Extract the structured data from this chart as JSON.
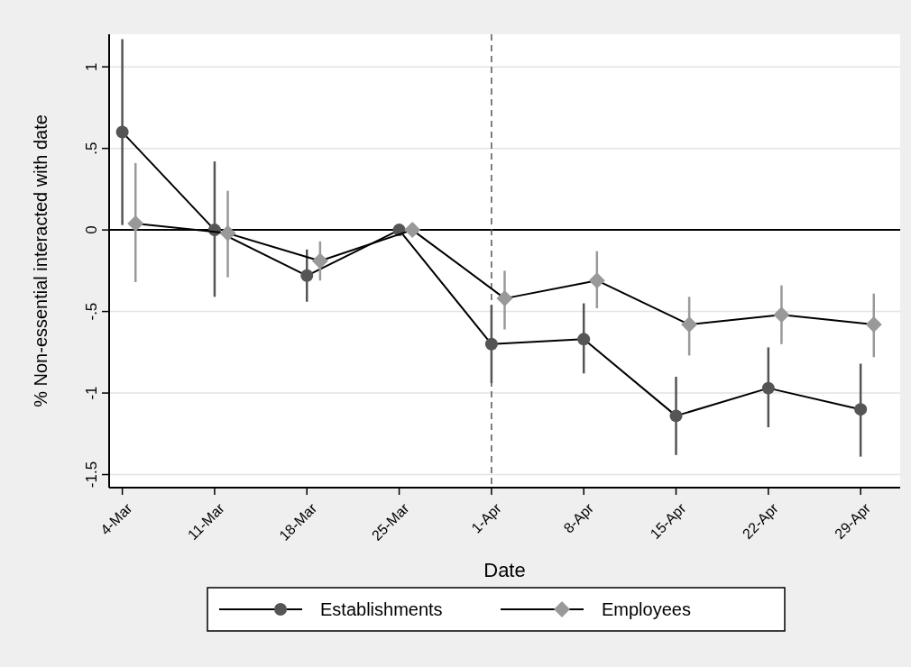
{
  "chart_data": {
    "type": "line",
    "xlabel": "Date",
    "ylabel": "% Non-essential interacted with date",
    "xlim": [
      "--03-03",
      "--05-02"
    ],
    "ylim": [
      -1.58,
      1.2
    ],
    "xticks": [
      {
        "value": "--03-04",
        "label": "4-Mar"
      },
      {
        "value": "--03-11",
        "label": "11-Mar"
      },
      {
        "value": "--03-18",
        "label": "18-Mar"
      },
      {
        "value": "--03-25",
        "label": "25-Mar"
      },
      {
        "value": "--04-01",
        "label": "1-Apr"
      },
      {
        "value": "--04-08",
        "label": "8-Apr"
      },
      {
        "value": "--04-15",
        "label": "15-Apr"
      },
      {
        "value": "--04-22",
        "label": "22-Apr"
      },
      {
        "value": "--04-29",
        "label": "29-Apr"
      }
    ],
    "yticks": [
      {
        "value": 1,
        "label": "1"
      },
      {
        "value": 0.5,
        "label": ".5"
      },
      {
        "value": 0,
        "label": "0"
      },
      {
        "value": -0.5,
        "label": "-.5"
      },
      {
        "value": -1,
        "label": "-1"
      },
      {
        "value": -1.5,
        "label": "-1.5"
      }
    ],
    "grid": "y",
    "legend": "bottom",
    "line_style": "solid",
    "ref_lines": [
      {
        "axis": "y",
        "value": 0,
        "color": "#000000",
        "line_style": "solid"
      },
      {
        "axis": "x",
        "value": "--04-01",
        "color": "#555555",
        "line_style": "dashed"
      }
    ],
    "series": [
      {
        "name": "Establishments",
        "color": "#555555",
        "marker": "circle",
        "x": [
          "--03-04",
          "--03-11",
          "--03-18",
          "--03-25",
          "--04-01",
          "--04-08",
          "--04-15",
          "--04-22",
          "--04-29"
        ],
        "values": [
          0.6,
          0.0,
          -0.28,
          0.0,
          -0.7,
          -0.67,
          -1.14,
          -0.97,
          -1.1
        ],
        "errors": [
          [
            0.03,
            1.17
          ],
          [
            -0.41,
            0.42
          ],
          [
            -0.44,
            -0.12
          ],
          null,
          [
            -0.94,
            -0.46
          ],
          [
            -0.88,
            -0.45
          ],
          [
            -1.38,
            -0.9
          ],
          [
            -1.21,
            -0.72
          ],
          [
            -1.39,
            -0.82
          ]
        ]
      },
      {
        "name": "Employees",
        "color": "#999999",
        "marker": "diamond",
        "x": [
          "--03-05",
          "--03-12",
          "--03-19",
          "--03-26",
          "--04-02",
          "--04-09",
          "--04-16",
          "--04-23",
          "--04-30"
        ],
        "values": [
          0.04,
          -0.02,
          -0.19,
          0.0,
          -0.42,
          -0.31,
          -0.58,
          -0.52,
          -0.58
        ],
        "errors": [
          [
            -0.32,
            0.41
          ],
          [
            -0.29,
            0.24
          ],
          [
            -0.31,
            -0.07
          ],
          null,
          [
            -0.61,
            -0.25
          ],
          [
            -0.48,
            -0.13
          ],
          [
            -0.77,
            -0.41
          ],
          [
            -0.7,
            -0.34
          ],
          [
            -0.78,
            -0.39
          ]
        ]
      }
    ]
  }
}
